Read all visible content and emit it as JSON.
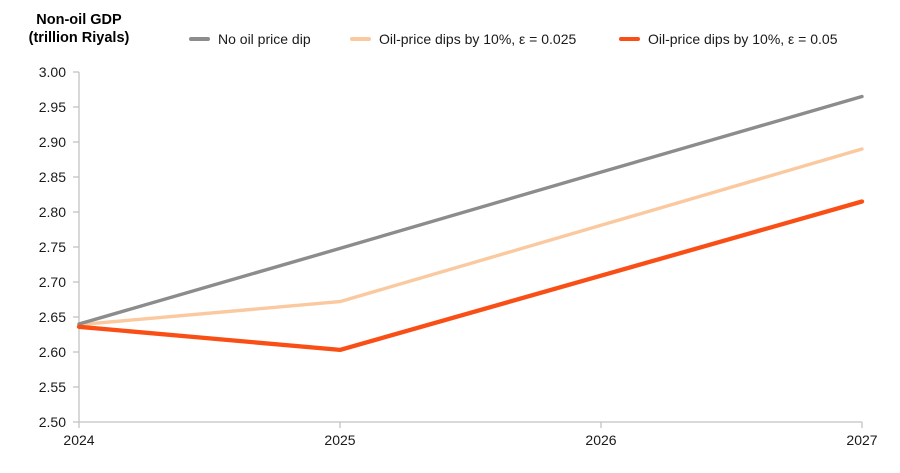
{
  "chart_data": {
    "type": "line",
    "title_line1": "Non-oil GDP",
    "title_line2": "(trillion Riyals)",
    "ylabel": "Non-oil GDP (trillion Riyals)",
    "xlabel": "",
    "x": [
      "2024",
      "2025",
      "2026",
      "2027"
    ],
    "ylim": [
      2.5,
      3.0
    ],
    "ytick_step": 0.05,
    "ytick_decimals": 2,
    "grid": false,
    "legend_position": "top",
    "axis_color": "#C2C2C2",
    "text_color": "#1A1A1A",
    "series": [
      {
        "name": "No oil price dip",
        "color": "#8C8C8C",
        "stroke_width": 3.4,
        "values": [
          2.64,
          2.748,
          2.857,
          2.965
        ]
      },
      {
        "name": "Oil-price dips by 10%, ε = 0.025",
        "color": "#FBC9A0",
        "stroke_width": 3.4,
        "values": [
          2.639,
          2.672,
          2.781,
          2.89
        ]
      },
      {
        "name": "Oil-price dips by 10%, ε = 0.05",
        "color": "#F94F16",
        "stroke_width": 4.3,
        "values": [
          2.636,
          2.603,
          2.709,
          2.815
        ]
      }
    ]
  }
}
